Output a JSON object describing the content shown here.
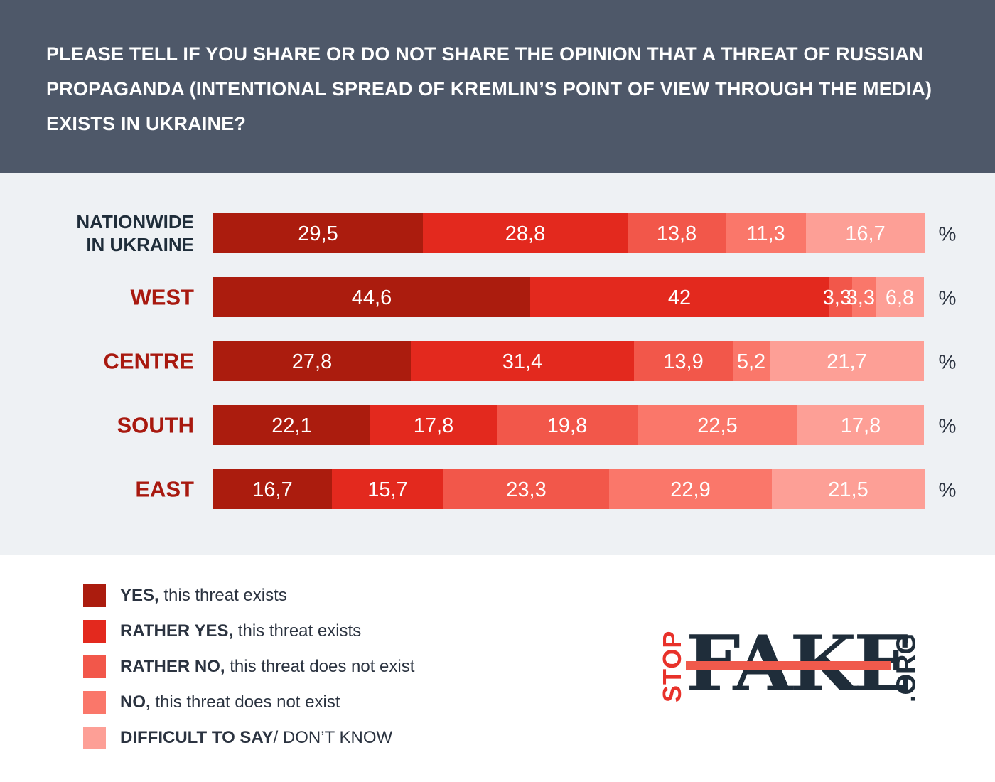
{
  "title": "PLEASE TELL IF YOU SHARE OR DO NOT SHARE THE OPINION THAT A THREAT OF RUSSIAN PROPAGANDA (INTENTIONAL SPREAD OF KREMLIN’S POINT OF VIEW THROUGH THE MEDIA) EXISTS IN UKRAINE?",
  "chart_data": {
    "type": "bar",
    "orientation": "horizontal",
    "stacked": true,
    "unit": "%",
    "categories": [
      {
        "label_lines": [
          "NATIONWIDE",
          "IN UKRAINE"
        ],
        "color": "#1f2d3a"
      },
      {
        "label_lines": [
          "WEST"
        ],
        "color": "#a8190f"
      },
      {
        "label_lines": [
          "CENTRE"
        ],
        "color": "#a8190f"
      },
      {
        "label_lines": [
          "SOUTH"
        ],
        "color": "#a8190f"
      },
      {
        "label_lines": [
          "EAST"
        ],
        "color": "#a8190f"
      }
    ],
    "series": [
      {
        "name": "YES, this threat exists",
        "color": "#ab1c0e",
        "values": [
          29.5,
          44.6,
          27.8,
          22.1,
          16.7
        ],
        "labels": [
          "29,5",
          "44,6",
          "27,8",
          "22,1",
          "16,7"
        ]
      },
      {
        "name": "RATHER YES, this threat exists",
        "color": "#e3291e",
        "values": [
          28.8,
          42,
          31.4,
          17.8,
          15.7
        ],
        "labels": [
          "28,8",
          "42",
          "31,4",
          "17,8",
          "15,7"
        ]
      },
      {
        "name": "RATHER NO, this threat does not exist",
        "color": "#f2574a",
        "values": [
          13.8,
          3.3,
          13.9,
          19.8,
          23.3
        ],
        "labels": [
          "13,8",
          "3,3",
          "13,9",
          "19,8",
          "23,3"
        ]
      },
      {
        "name": "NO, this threat does not exist",
        "color": "#fa776a",
        "values": [
          11.3,
          3.3,
          5.2,
          22.5,
          22.9
        ],
        "labels": [
          "11,3",
          "3,3",
          "5,2",
          "22,5",
          "22,9"
        ]
      },
      {
        "name": "DIFFICULT TO SAY/ DON’T KNOW",
        "color": "#fd9f96",
        "values": [
          16.7,
          6.8,
          21.7,
          17.8,
          21.5
        ],
        "labels": [
          "16,7",
          "6,8",
          "21,7",
          "17,8",
          "21,5"
        ]
      }
    ],
    "xlim": [
      0,
      100
    ]
  },
  "legend": [
    {
      "bold": "YES,",
      "rest": " this threat exists",
      "color": "#ab1c0e"
    },
    {
      "bold": "RATHER YES,",
      "rest": " this threat exists",
      "color": "#e3291e"
    },
    {
      "bold": "RATHER NO,",
      "rest": " this threat does not exist",
      "color": "#f2574a"
    },
    {
      "bold": "NO,",
      "rest": " this threat does not exist",
      "color": "#fa776a"
    },
    {
      "bold": "DIFFICULT TO SAY",
      "rest": "/ DON’T KNOW",
      "color": "#fd9f96"
    }
  ],
  "logo": {
    "stop": "STOP",
    "fake": "FAKE",
    "org": ".ORG"
  }
}
